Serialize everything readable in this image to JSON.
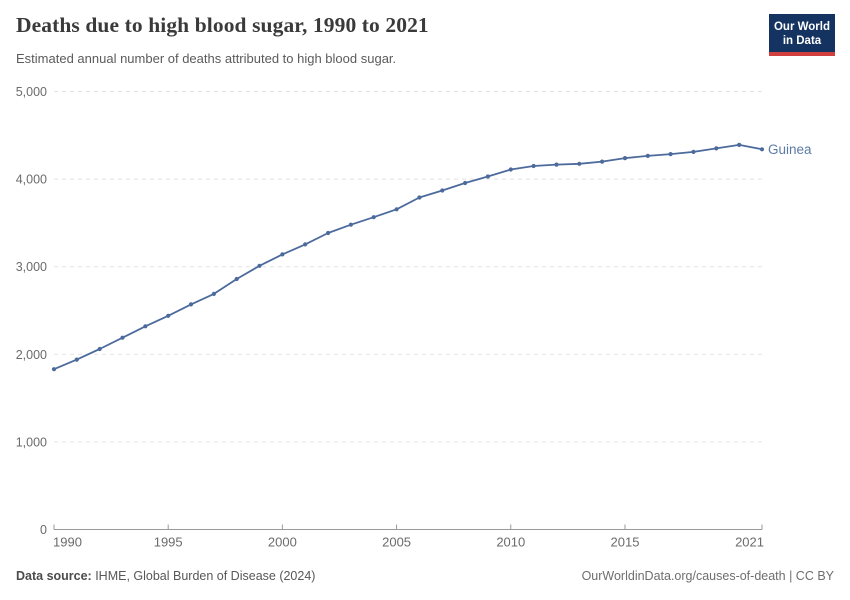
{
  "header": {
    "title": "Deaths due to high blood sugar, 1990 to 2021",
    "subtitle": "Estimated annual number of deaths attributed to high blood sugar.",
    "logo": {
      "line1": "Our World",
      "line2": "in Data"
    }
  },
  "chart_data": {
    "type": "line",
    "title": "Deaths due to high blood sugar, 1990 to 2021",
    "x": [
      1990,
      1991,
      1992,
      1993,
      1994,
      1995,
      1996,
      1997,
      1998,
      1999,
      2000,
      2001,
      2002,
      2003,
      2004,
      2005,
      2006,
      2007,
      2008,
      2009,
      2010,
      2011,
      2012,
      2013,
      2014,
      2015,
      2016,
      2017,
      2018,
      2019,
      2020,
      2021
    ],
    "series": [
      {
        "name": "Guinea",
        "color": "#4c6a9c",
        "values": [
          1830,
          1940,
          2060,
          2190,
          2320,
          2440,
          2570,
          2690,
          2860,
          3010,
          3140,
          3255,
          3385,
          3480,
          3565,
          3655,
          3790,
          3870,
          3955,
          4030,
          4110,
          4150,
          4165,
          4175,
          4200,
          4240,
          4265,
          4285,
          4310,
          4350,
          4390,
          4340
        ]
      }
    ],
    "xlabel": "",
    "ylabel": "",
    "xlim": [
      1990,
      2021
    ],
    "ylim": [
      0,
      5000
    ],
    "xticks": [
      1990,
      1995,
      2000,
      2005,
      2010,
      2015,
      2021
    ],
    "xtick_labels": [
      "1990",
      "1995",
      "2000",
      "2005",
      "2010",
      "2015",
      "2021"
    ],
    "yticks": [
      0,
      1000,
      2000,
      3000,
      4000,
      5000
    ],
    "ytick_labels": [
      "0",
      "1,000",
      "2,000",
      "3,000",
      "4,000",
      "5,000"
    ],
    "grid": "horizontal-dashed",
    "legend_position": "end-of-line-label"
  },
  "footer": {
    "source_label": "Data source:",
    "source_text": " IHME, Global Burden of Disease (2024)",
    "attribution": "OurWorldinData.org/causes-of-death | CC BY"
  },
  "colors": {
    "line": "#4c6a9c",
    "series_label": "#5b7ba6",
    "grid": "#e2e2e2",
    "axis": "#9a9a9a",
    "tick_text": "#6b6b6b",
    "logo_bg": "#153360",
    "logo_stripe": "#d13f3f"
  }
}
